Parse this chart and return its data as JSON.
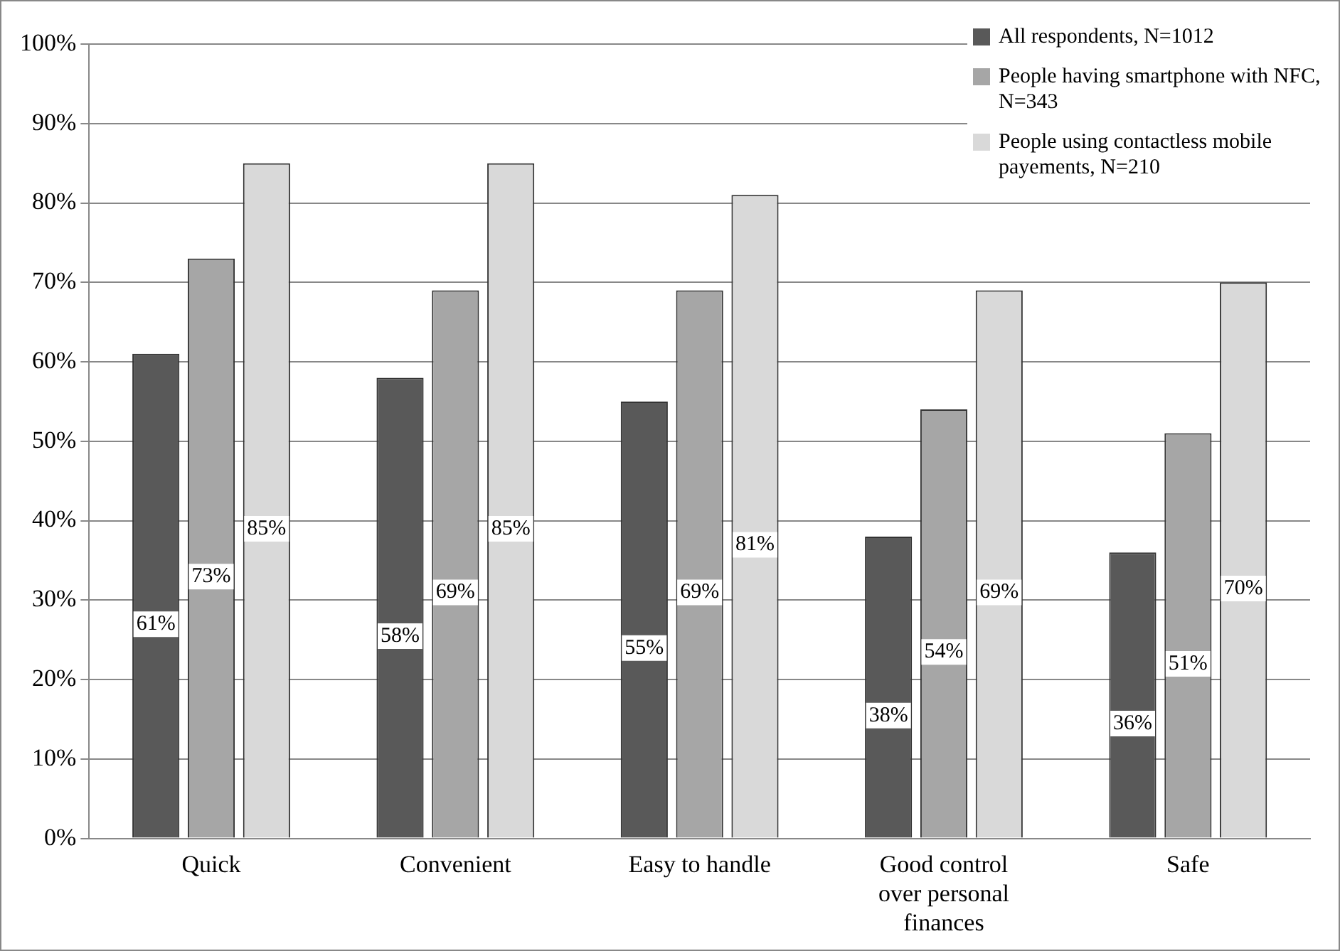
{
  "chart_data": {
    "type": "bar",
    "categories": [
      "Quick",
      "Convenient",
      "Easy to handle",
      "Good control over personal finances",
      "Safe"
    ],
    "series": [
      {
        "name": "All respondents, N=1012",
        "color": "#595959",
        "values": [
          61,
          58,
          55,
          38,
          36
        ],
        "value_labels": [
          "61%",
          "58%",
          "55%",
          "38%",
          "36%"
        ]
      },
      {
        "name": "People having smartphone with NFC, N=343",
        "color": "#a6a6a6",
        "values": [
          73,
          69,
          69,
          54,
          51
        ],
        "value_labels": [
          "73%",
          "69%",
          "69%",
          "54%",
          "51%"
        ]
      },
      {
        "name": "People using contactless mobile payements, N=210",
        "color": "#d9d9d9",
        "values": [
          85,
          85,
          81,
          69,
          70
        ],
        "value_labels": [
          "85%",
          "85%",
          "81%",
          "69%",
          "70%"
        ]
      }
    ],
    "ylim": [
      0,
      100
    ],
    "yticks": [
      {
        "value": 0,
        "label": "0%"
      },
      {
        "value": 10,
        "label": "10%"
      },
      {
        "value": 20,
        "label": "20%"
      },
      {
        "value": 30,
        "label": "30%"
      },
      {
        "value": 40,
        "label": "40%"
      },
      {
        "value": 50,
        "label": "50%"
      },
      {
        "value": 60,
        "label": "60%"
      },
      {
        "value": 70,
        "label": "70%"
      },
      {
        "value": 80,
        "label": "80%"
      },
      {
        "value": 90,
        "label": "90%"
      },
      {
        "value": 100,
        "label": "100%"
      }
    ],
    "grid": "y",
    "legend": "top right"
  }
}
